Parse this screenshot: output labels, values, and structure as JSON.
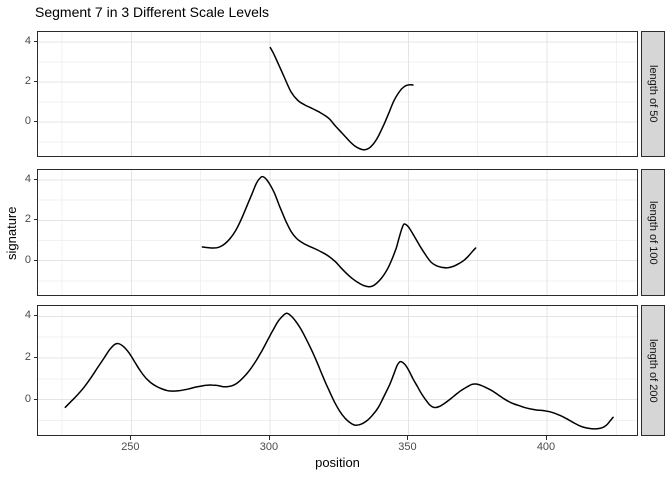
{
  "title": "Segment 7 in 3 Different Scale Levels",
  "axes": {
    "x_label": "position",
    "y_label": "signature",
    "x_ticks": [
      250,
      300,
      350,
      400
    ],
    "y_ticks": [
      4,
      2,
      0
    ]
  },
  "colors": {
    "curve": "#000000",
    "panel_border": "#2b2b2b",
    "grid_major": "#e4e4e4",
    "grid_minor": "#f1f1f1",
    "strip_fill": "#d6d6d6",
    "tick_text": "#4a4a4a",
    "text": "#000000"
  },
  "chart_data": {
    "type": "line",
    "title": "Segment 7 in 3 Different Scale Levels",
    "xlabel": "position",
    "ylabel": "signature",
    "xlim": [
      216.3,
      433.2
    ],
    "ylim": [
      -1.8,
      4.5
    ],
    "x_major": [
      250,
      300,
      350,
      400
    ],
    "x_minor": [
      225,
      275,
      325,
      375,
      425
    ],
    "y_major": [
      0,
      2,
      4
    ],
    "y_minor": [
      -1,
      1,
      3
    ],
    "grid": "major+minor",
    "legend": "none",
    "facets": [
      {
        "label": "length of 50",
        "x_span": [
          300.5,
          352
        ],
        "points": [
          [
            300.5,
            3.67
          ],
          [
            301.5,
            3.42
          ],
          [
            303,
            2.98
          ],
          [
            305.5,
            2.2
          ],
          [
            308,
            1.45
          ],
          [
            310.5,
            1.02
          ],
          [
            313,
            0.8
          ],
          [
            316,
            0.6
          ],
          [
            318.5,
            0.42
          ],
          [
            320.5,
            0.25
          ],
          [
            322,
            0.08
          ],
          [
            324,
            -0.25
          ],
          [
            326.5,
            -0.62
          ],
          [
            329,
            -1.0
          ],
          [
            331,
            -1.25
          ],
          [
            333,
            -1.4
          ],
          [
            334.5,
            -1.44
          ],
          [
            336,
            -1.37
          ],
          [
            337.5,
            -1.18
          ],
          [
            339,
            -0.88
          ],
          [
            340.5,
            -0.48
          ],
          [
            342,
            -0.02
          ],
          [
            343.5,
            0.48
          ],
          [
            345,
            0.98
          ],
          [
            346.5,
            1.35
          ],
          [
            348,
            1.62
          ],
          [
            349.5,
            1.77
          ],
          [
            350.8,
            1.81
          ],
          [
            352,
            1.8
          ]
        ]
      },
      {
        "label": "length of 100",
        "x_span": [
          276,
          374.6
        ],
        "points": [
          [
            276,
            0.63
          ],
          [
            278,
            0.6
          ],
          [
            280,
            0.58
          ],
          [
            282,
            0.62
          ],
          [
            284,
            0.78
          ],
          [
            286,
            1.05
          ],
          [
            288,
            1.45
          ],
          [
            290,
            2.0
          ],
          [
            292,
            2.65
          ],
          [
            294,
            3.3
          ],
          [
            295.5,
            3.8
          ],
          [
            297,
            4.08
          ],
          [
            297.8,
            4.12
          ],
          [
            299,
            4.0
          ],
          [
            300.5,
            3.7
          ],
          [
            302,
            3.3
          ],
          [
            304,
            2.6
          ],
          [
            306,
            1.95
          ],
          [
            308,
            1.4
          ],
          [
            310,
            1.05
          ],
          [
            312,
            0.85
          ],
          [
            314,
            0.7
          ],
          [
            316.5,
            0.55
          ],
          [
            319,
            0.38
          ],
          [
            321.5,
            0.18
          ],
          [
            324,
            -0.1
          ],
          [
            326,
            -0.4
          ],
          [
            328,
            -0.68
          ],
          [
            330,
            -0.92
          ],
          [
            332,
            -1.12
          ],
          [
            334,
            -1.27
          ],
          [
            336,
            -1.34
          ],
          [
            337.5,
            -1.3
          ],
          [
            339,
            -1.15
          ],
          [
            341,
            -0.85
          ],
          [
            343,
            -0.4
          ],
          [
            344.5,
            0.05
          ],
          [
            346,
            0.6
          ],
          [
            347,
            1.1
          ],
          [
            348,
            1.55
          ],
          [
            348.8,
            1.77
          ],
          [
            350,
            1.68
          ],
          [
            351,
            1.5
          ],
          [
            352.5,
            1.15
          ],
          [
            354.5,
            0.68
          ],
          [
            356.5,
            0.25
          ],
          [
            358.5,
            -0.12
          ],
          [
            360.5,
            -0.3
          ],
          [
            362.5,
            -0.38
          ],
          [
            364.5,
            -0.4
          ],
          [
            366.5,
            -0.33
          ],
          [
            368.5,
            -0.2
          ],
          [
            370.5,
            -0.02
          ],
          [
            372,
            0.18
          ],
          [
            373.5,
            0.42
          ],
          [
            374.6,
            0.58
          ]
        ]
      },
      {
        "label": "length of 200",
        "x_span": [
          226.5,
          424.2
        ],
        "points": [
          [
            226.5,
            -0.42
          ],
          [
            228.5,
            -0.15
          ],
          [
            230.5,
            0.12
          ],
          [
            233,
            0.5
          ],
          [
            235.5,
            0.95
          ],
          [
            238,
            1.45
          ],
          [
            240.5,
            1.95
          ],
          [
            242.5,
            2.35
          ],
          [
            244.3,
            2.6
          ],
          [
            245.8,
            2.64
          ],
          [
            247.5,
            2.5
          ],
          [
            249.5,
            2.2
          ],
          [
            251.5,
            1.78
          ],
          [
            253.5,
            1.35
          ],
          [
            255.5,
            1.0
          ],
          [
            257.5,
            0.75
          ],
          [
            259.5,
            0.58
          ],
          [
            261.5,
            0.46
          ],
          [
            263.5,
            0.38
          ],
          [
            265.5,
            0.36
          ],
          [
            267.5,
            0.38
          ],
          [
            269.5,
            0.42
          ],
          [
            271.5,
            0.48
          ],
          [
            273.5,
            0.55
          ],
          [
            275.5,
            0.6
          ],
          [
            277.5,
            0.64
          ],
          [
            279.5,
            0.65
          ],
          [
            281.5,
            0.63
          ],
          [
            283.5,
            0.57
          ],
          [
            285.5,
            0.58
          ],
          [
            287.5,
            0.66
          ],
          [
            289.5,
            0.85
          ],
          [
            291.5,
            1.12
          ],
          [
            293.5,
            1.45
          ],
          [
            295.5,
            1.85
          ],
          [
            297.5,
            2.3
          ],
          [
            299.5,
            2.8
          ],
          [
            301.5,
            3.3
          ],
          [
            303.5,
            3.75
          ],
          [
            305.2,
            4.0
          ],
          [
            306.4,
            4.1
          ],
          [
            307.8,
            4.0
          ],
          [
            309.5,
            3.75
          ],
          [
            311.5,
            3.35
          ],
          [
            313.5,
            2.85
          ],
          [
            315.5,
            2.3
          ],
          [
            317.5,
            1.7
          ],
          [
            319.5,
            1.05
          ],
          [
            321.5,
            0.45
          ],
          [
            323.5,
            -0.12
          ],
          [
            325.5,
            -0.6
          ],
          [
            327.5,
            -0.95
          ],
          [
            329.5,
            -1.18
          ],
          [
            331.2,
            -1.28
          ],
          [
            333.5,
            -1.22
          ],
          [
            335.5,
            -1.05
          ],
          [
            337.5,
            -0.78
          ],
          [
            339.5,
            -0.42
          ],
          [
            341.5,
            0.1
          ],
          [
            343.5,
            0.65
          ],
          [
            345,
            1.15
          ],
          [
            346.3,
            1.6
          ],
          [
            347.5,
            1.78
          ],
          [
            349,
            1.65
          ],
          [
            350.5,
            1.35
          ],
          [
            352,
            0.95
          ],
          [
            353.5,
            0.6
          ],
          [
            355,
            0.25
          ],
          [
            356.5,
            -0.05
          ],
          [
            358,
            -0.3
          ],
          [
            359.7,
            -0.43
          ],
          [
            361.5,
            -0.38
          ],
          [
            363.5,
            -0.22
          ],
          [
            365.5,
            -0.02
          ],
          [
            367.5,
            0.2
          ],
          [
            369.5,
            0.4
          ],
          [
            371.5,
            0.56
          ],
          [
            373.2,
            0.68
          ],
          [
            374.8,
            0.7
          ],
          [
            376.5,
            0.64
          ],
          [
            378.5,
            0.52
          ],
          [
            380.5,
            0.38
          ],
          [
            382.5,
            0.2
          ],
          [
            384.5,
            0.02
          ],
          [
            386.5,
            -0.14
          ],
          [
            388.5,
            -0.26
          ],
          [
            390.5,
            -0.35
          ],
          [
            392.5,
            -0.44
          ],
          [
            394.5,
            -0.5
          ],
          [
            396.5,
            -0.55
          ],
          [
            398.5,
            -0.57
          ],
          [
            400.5,
            -0.61
          ],
          [
            402.5,
            -0.68
          ],
          [
            404.5,
            -0.78
          ],
          [
            406.5,
            -0.9
          ],
          [
            408.5,
            -1.05
          ],
          [
            410.5,
            -1.2
          ],
          [
            412.5,
            -1.33
          ],
          [
            414.5,
            -1.41
          ],
          [
            416.5,
            -1.45
          ],
          [
            418.5,
            -1.45
          ],
          [
            420.3,
            -1.4
          ],
          [
            421.8,
            -1.28
          ],
          [
            423,
            -1.1
          ],
          [
            424.2,
            -0.9
          ]
        ]
      }
    ]
  }
}
